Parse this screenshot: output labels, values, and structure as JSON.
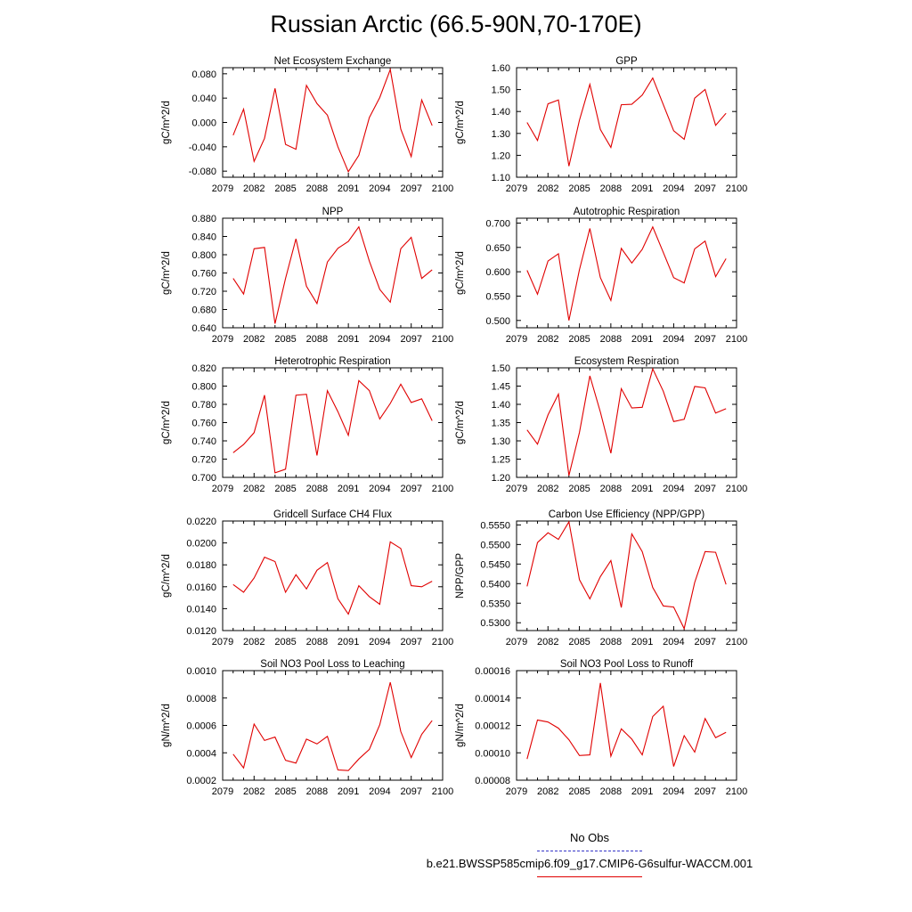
{
  "title": "Russian Arctic (66.5-90N,70-170E)",
  "legend": {
    "obs_label": "No Obs",
    "obs_color": "#3535c8",
    "case_label": "b.e21.BWSSP585cmip6.f09_g17.CMIP6-G6sulfur-WACCM.001",
    "case_color": "#e00000"
  },
  "chart_data": [
    {
      "type": "line",
      "title": "Net Ecosystem Exchange",
      "ylabel": "gC/m^2/d",
      "xlim": [
        2079,
        2100
      ],
      "xticks": [
        "2079",
        "2082",
        "2085",
        "2088",
        "2091",
        "2094",
        "2097",
        "2100"
      ],
      "ylim": [
        -0.09,
        0.09
      ],
      "yticks": [
        "-0.080",
        "-0.040",
        "0.000",
        "0.040",
        "0.080"
      ],
      "x": [
        2080,
        2081,
        2082,
        2083,
        2084,
        2085,
        2086,
        2087,
        2088,
        2089,
        2090,
        2091,
        2092,
        2093,
        2094,
        2095,
        2096,
        2097,
        2098,
        2099
      ],
      "series": [
        {
          "values": [
            -0.021,
            0.022,
            -0.064,
            -0.026,
            0.056,
            -0.036,
            -0.044,
            0.061,
            0.031,
            0.012,
            -0.04,
            -0.081,
            -0.054,
            0.008,
            0.041,
            0.087,
            -0.011,
            -0.056,
            0.037,
            -0.005
          ]
        }
      ]
    },
    {
      "type": "line",
      "title": "GPP",
      "ylabel": "gC/m^2/d",
      "xlim": [
        2079,
        2100
      ],
      "xticks": [
        "2079",
        "2082",
        "2085",
        "2088",
        "2091",
        "2094",
        "2097",
        "2100"
      ],
      "ylim": [
        1.1,
        1.6
      ],
      "yticks": [
        "1.10",
        "1.20",
        "1.30",
        "1.40",
        "1.50",
        "1.60"
      ],
      "x": [
        2080,
        2081,
        2082,
        2083,
        2084,
        2085,
        2086,
        2087,
        2088,
        2089,
        2090,
        2091,
        2092,
        2093,
        2094,
        2095,
        2096,
        2097,
        2098,
        2099
      ],
      "series": [
        {
          "values": [
            1.35,
            1.268,
            1.435,
            1.453,
            1.151,
            1.36,
            1.524,
            1.318,
            1.236,
            1.431,
            1.433,
            1.475,
            1.553,
            1.432,
            1.312,
            1.273,
            1.461,
            1.501,
            1.337,
            1.392
          ]
        }
      ]
    },
    {
      "type": "line",
      "title": "NPP",
      "ylabel": "gC/m^2/d",
      "xlim": [
        2079,
        2100
      ],
      "xticks": [
        "2079",
        "2082",
        "2085",
        "2088",
        "2091",
        "2094",
        "2097",
        "2100"
      ],
      "ylim": [
        0.64,
        0.88
      ],
      "yticks": [
        "0.640",
        "0.680",
        "0.720",
        "0.760",
        "0.800",
        "0.840",
        "0.880"
      ],
      "x": [
        2080,
        2081,
        2082,
        2083,
        2084,
        2085,
        2086,
        2087,
        2088,
        2089,
        2090,
        2091,
        2092,
        2093,
        2094,
        2095,
        2096,
        2097,
        2098,
        2099
      ],
      "series": [
        {
          "values": [
            0.748,
            0.714,
            0.813,
            0.816,
            0.649,
            0.748,
            0.835,
            0.731,
            0.693,
            0.784,
            0.814,
            0.829,
            0.861,
            0.786,
            0.724,
            0.696,
            0.813,
            0.838,
            0.748,
            0.767
          ]
        }
      ]
    },
    {
      "type": "line",
      "title": "Autotrophic Respiration",
      "ylabel": "gC/m^2/d",
      "xlim": [
        2079,
        2100
      ],
      "xticks": [
        "2079",
        "2082",
        "2085",
        "2088",
        "2091",
        "2094",
        "2097",
        "2100"
      ],
      "ylim": [
        0.485,
        0.71
      ],
      "yticks": [
        "0.500",
        "0.550",
        "0.600",
        "0.650",
        "0.700"
      ],
      "x": [
        2080,
        2081,
        2082,
        2083,
        2084,
        2085,
        2086,
        2087,
        2088,
        2089,
        2090,
        2091,
        2092,
        2093,
        2094,
        2095,
        2096,
        2097,
        2098,
        2099
      ],
      "series": [
        {
          "values": [
            0.603,
            0.554,
            0.622,
            0.637,
            0.5,
            0.604,
            0.689,
            0.588,
            0.541,
            0.648,
            0.618,
            0.646,
            0.692,
            0.64,
            0.588,
            0.577,
            0.647,
            0.663,
            0.59,
            0.627
          ]
        }
      ]
    },
    {
      "type": "line",
      "title": "Heterotrophic Respiration",
      "ylabel": "gC/m^2/d",
      "xlim": [
        2079,
        2100
      ],
      "xticks": [
        "2079",
        "2082",
        "2085",
        "2088",
        "2091",
        "2094",
        "2097",
        "2100"
      ],
      "ylim": [
        0.7,
        0.82
      ],
      "yticks": [
        "0.700",
        "0.720",
        "0.740",
        "0.760",
        "0.780",
        "0.800",
        "0.820"
      ],
      "x": [
        2080,
        2081,
        2082,
        2083,
        2084,
        2085,
        2086,
        2087,
        2088,
        2089,
        2090,
        2091,
        2092,
        2093,
        2094,
        2095,
        2096,
        2097,
        2098,
        2099
      ],
      "series": [
        {
          "values": [
            0.727,
            0.736,
            0.749,
            0.79,
            0.705,
            0.709,
            0.79,
            0.791,
            0.724,
            0.795,
            0.772,
            0.746,
            0.806,
            0.795,
            0.764,
            0.781,
            0.802,
            0.782,
            0.786,
            0.762
          ]
        }
      ]
    },
    {
      "type": "line",
      "title": "Ecosystem Respiration",
      "ylabel": "gC/m^2/d",
      "xlim": [
        2079,
        2100
      ],
      "xticks": [
        "2079",
        "2082",
        "2085",
        "2088",
        "2091",
        "2094",
        "2097",
        "2100"
      ],
      "ylim": [
        1.2,
        1.5
      ],
      "yticks": [
        "1.20",
        "1.25",
        "1.30",
        "1.35",
        "1.40",
        "1.45",
        "1.50"
      ],
      "x": [
        2080,
        2081,
        2082,
        2083,
        2084,
        2085,
        2086,
        2087,
        2088,
        2089,
        2090,
        2091,
        2092,
        2093,
        2094,
        2095,
        2096,
        2097,
        2098,
        2099
      ],
      "series": [
        {
          "values": [
            1.33,
            1.291,
            1.371,
            1.428,
            1.205,
            1.323,
            1.478,
            1.379,
            1.266,
            1.443,
            1.39,
            1.392,
            1.497,
            1.436,
            1.353,
            1.359,
            1.449,
            1.445,
            1.376,
            1.388
          ]
        }
      ]
    },
    {
      "type": "line",
      "title": "Gridcell Surface CH4 Flux",
      "ylabel": "gC/m^2/d",
      "xlim": [
        2079,
        2100
      ],
      "xticks": [
        "2079",
        "2082",
        "2085",
        "2088",
        "2091",
        "2094",
        "2097",
        "2100"
      ],
      "ylim": [
        0.012,
        0.022
      ],
      "yticks": [
        "0.0120",
        "0.0140",
        "0.0160",
        "0.0180",
        "0.0200",
        "0.0220"
      ],
      "x": [
        2080,
        2081,
        2082,
        2083,
        2084,
        2085,
        2086,
        2087,
        2088,
        2089,
        2090,
        2091,
        2092,
        2093,
        2094,
        2095,
        2096,
        2097,
        2098,
        2099
      ],
      "series": [
        {
          "values": [
            0.0162,
            0.0155,
            0.0168,
            0.0187,
            0.0183,
            0.0155,
            0.0171,
            0.0158,
            0.0175,
            0.0182,
            0.0149,
            0.0135,
            0.0161,
            0.0151,
            0.0144,
            0.0201,
            0.0195,
            0.0161,
            0.016,
            0.0165
          ]
        }
      ]
    },
    {
      "type": "line",
      "title": "Carbon Use Efficiency (NPP/GPP)",
      "ylabel": "NPP/GPP",
      "xlim": [
        2079,
        2100
      ],
      "xticks": [
        "2079",
        "2082",
        "2085",
        "2088",
        "2091",
        "2094",
        "2097",
        "2100"
      ],
      "ylim": [
        0.528,
        0.556
      ],
      "yticks": [
        "0.5300",
        "0.5350",
        "0.5400",
        "0.5450",
        "0.5500",
        "0.5550"
      ],
      "x": [
        2080,
        2081,
        2082,
        2083,
        2084,
        2085,
        2086,
        2087,
        2088,
        2089,
        2090,
        2091,
        2092,
        2093,
        2094,
        2095,
        2096,
        2097,
        2098,
        2099
      ],
      "series": [
        {
          "values": [
            0.5393,
            0.5505,
            0.553,
            0.5513,
            0.5558,
            0.541,
            0.5361,
            0.5418,
            0.5459,
            0.5339,
            0.5527,
            0.5482,
            0.539,
            0.5343,
            0.534,
            0.5285,
            0.5403,
            0.5482,
            0.548,
            0.5398
          ]
        }
      ]
    },
    {
      "type": "line",
      "title": "Soil NO3 Pool Loss to Leaching",
      "ylabel": "gN/m^2/d",
      "xlim": [
        2079,
        2100
      ],
      "xticks": [
        "2079",
        "2082",
        "2085",
        "2088",
        "2091",
        "2094",
        "2097",
        "2100"
      ],
      "ylim": [
        0.0002,
        0.001
      ],
      "yticks": [
        "0.0002",
        "0.0004",
        "0.0006",
        "0.0008",
        "0.0010"
      ],
      "x": [
        2080,
        2081,
        2082,
        2083,
        2084,
        2085,
        2086,
        2087,
        2088,
        2089,
        2090,
        2091,
        2092,
        2093,
        2094,
        2095,
        2096,
        2097,
        2098,
        2099
      ],
      "series": [
        {
          "values": [
            0.00039,
            0.00029,
            0.00061,
            0.00049,
            0.000515,
            0.000345,
            0.000325,
            0.0005,
            0.000465,
            0.00052,
            0.000275,
            0.00027,
            0.000355,
            0.000425,
            0.000605,
            0.000915,
            0.000555,
            0.000365,
            0.000535,
            0.000635
          ]
        }
      ]
    },
    {
      "type": "line",
      "title": "Soil NO3 Pool Loss to Runoff",
      "ylabel": "gN/m^2/d",
      "xlim": [
        2079,
        2100
      ],
      "xticks": [
        "2079",
        "2082",
        "2085",
        "2088",
        "2091",
        "2094",
        "2097",
        "2100"
      ],
      "ylim": [
        8e-05,
        0.00016
      ],
      "yticks": [
        "0.00008",
        "0.00010",
        "0.00012",
        "0.00014",
        "0.00016"
      ],
      "x": [
        2080,
        2081,
        2082,
        2083,
        2084,
        2085,
        2086,
        2087,
        2088,
        2089,
        2090,
        2091,
        2092,
        2093,
        2094,
        2095,
        2096,
        2097,
        2098,
        2099
      ],
      "series": [
        {
          "values": [
            9.55e-05,
            0.000124,
            0.0001225,
            0.000118,
            0.0001095,
            9.8e-05,
            9.85e-05,
            0.000151,
            9.75e-05,
            0.0001175,
            0.00011,
            9.85e-05,
            0.0001265,
            0.000134,
            9e-05,
            0.0001125,
            0.0001005,
            0.000125,
            0.000111,
            0.000115
          ]
        }
      ]
    }
  ]
}
